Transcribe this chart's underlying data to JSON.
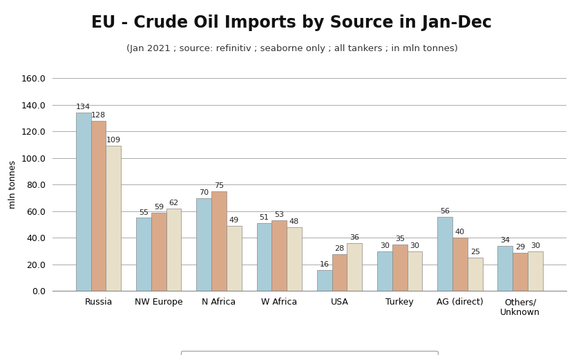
{
  "title": "EU - Crude Oil Imports by Source in Jan-Dec",
  "subtitle": "(Jan 2021 ; source: refinitiv ; seaborne only ; all tankers ; in mln tonnes)",
  "ylabel": "mln tonnes",
  "categories": [
    "Russia",
    "NW Europe",
    "N Africa",
    "W Africa",
    "USA",
    "Turkey",
    "AG (direct)",
    "Others/\nUnknown"
  ],
  "series": {
    "2018 (1-12)": [
      134,
      55,
      70,
      51,
      16,
      30,
      56,
      34
    ],
    "2019 (1-12)": [
      128,
      59,
      75,
      53,
      28,
      35,
      40,
      29
    ],
    "2020 (1-12)": [
      109,
      62,
      49,
      48,
      36,
      30,
      25,
      30
    ]
  },
  "colors": {
    "2018 (1-12)": "#a8cdd8",
    "2019 (1-12)": "#d9a98a",
    "2020 (1-12)": "#e8dfc8"
  },
  "ylim": [
    0,
    160
  ],
  "yticks": [
    0,
    20,
    40,
    60,
    80,
    100,
    120,
    140,
    160
  ],
  "ytick_labels": [
    "0.0",
    "20.0",
    "40.0",
    "60.0",
    "80.0",
    "100.0",
    "120.0",
    "140.0",
    "160.0"
  ],
  "background_color": "#ffffff",
  "grid_color": "#aaaaaa",
  "bar_edge_color": "#888888",
  "title_fontsize": 17,
  "subtitle_fontsize": 9.5,
  "label_fontsize": 9,
  "tick_fontsize": 9,
  "legend_fontsize": 9,
  "annotation_fontsize": 8
}
